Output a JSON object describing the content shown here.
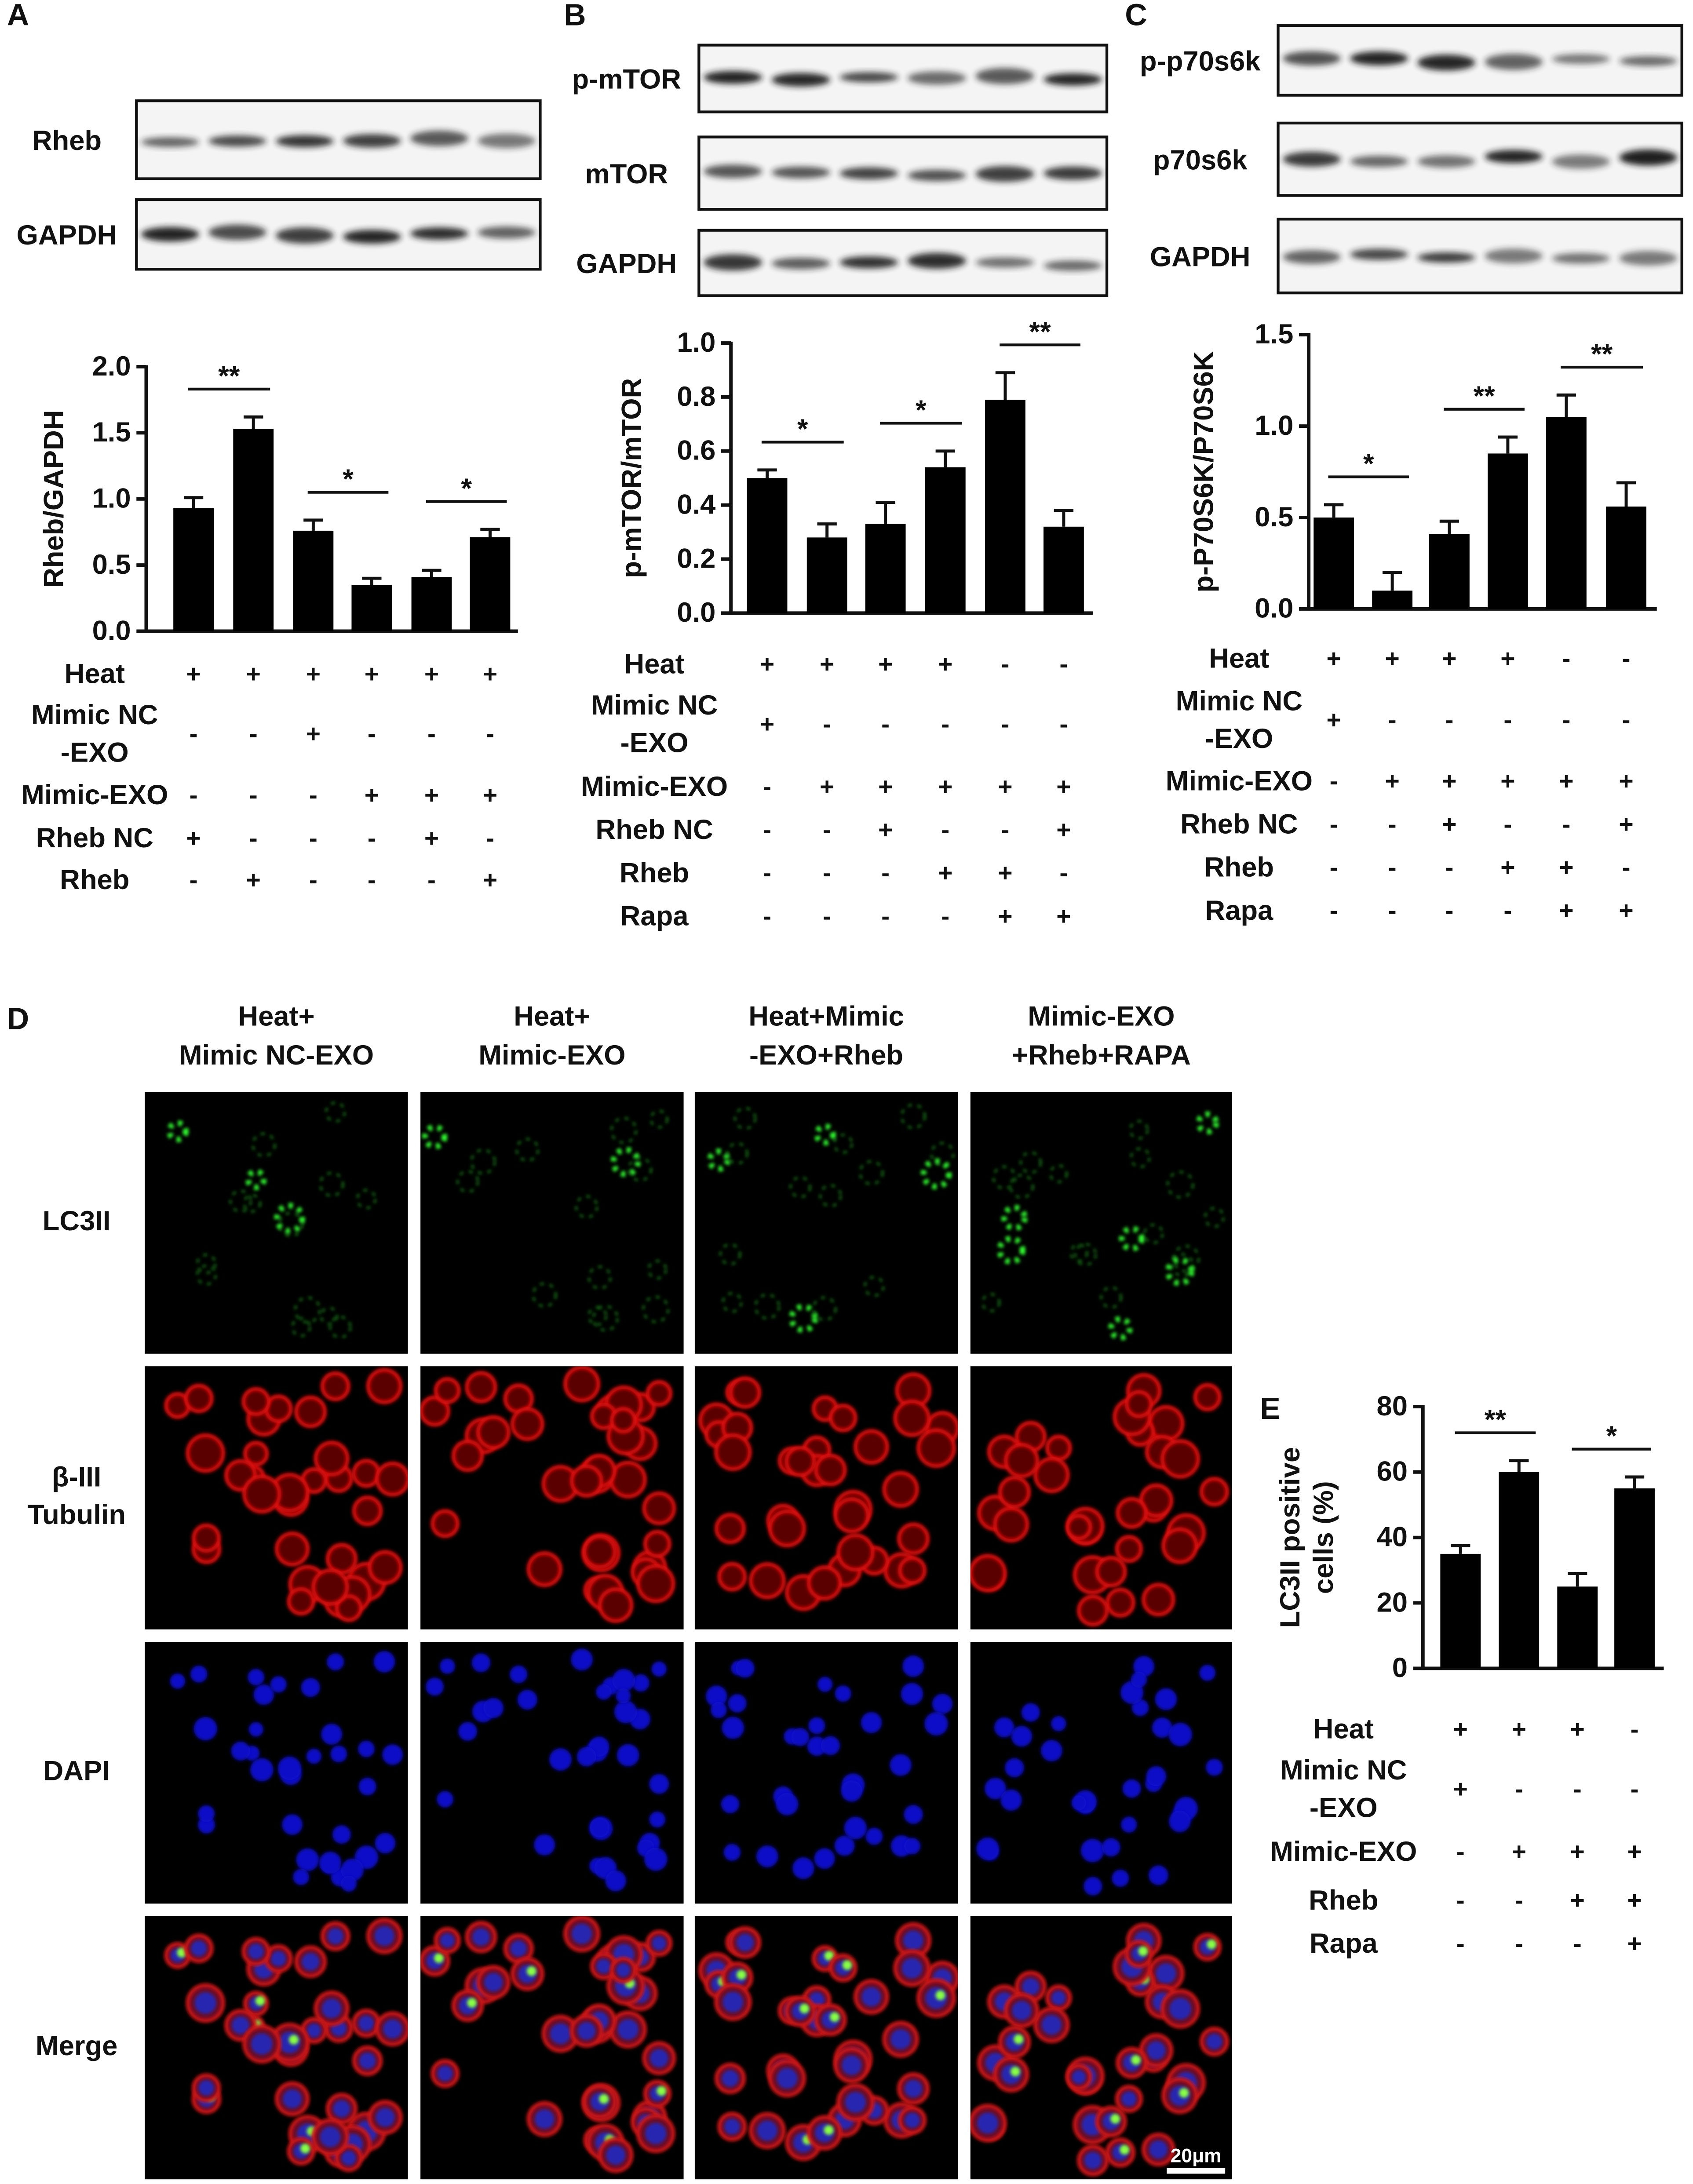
{
  "chart_data": [
    {
      "type": "bar",
      "panel": "A",
      "blots": [
        "Rheb",
        "GAPDH"
      ],
      "y_label": [
        "Rheb/GAPDH"
      ],
      "color": "#000000",
      "values": [
        0.93,
        1.53,
        0.76,
        0.35,
        0.41,
        0.71
      ],
      "errors": [
        0.08,
        0.09,
        0.08,
        0.05,
        0.05,
        0.06
      ],
      "ylim": [
        0,
        2
      ],
      "yticks": [
        {
          "value": 0,
          "label": "0.0"
        },
        {
          "value": 0.5,
          "label": "0.5"
        },
        {
          "value": 1,
          "label": "1.0"
        },
        {
          "value": 1.5,
          "label": "1.5"
        },
        {
          "value": 2,
          "label": "2.0"
        }
      ],
      "significance": [
        {
          "label": "**",
          "bars": [
            0,
            1
          ]
        },
        {
          "label": "*",
          "bars": [
            2,
            3
          ]
        },
        {
          "label": "*",
          "bars": [
            4,
            5
          ]
        }
      ],
      "conditions": [
        {
          "name": [
            "Heat"
          ],
          "signs": [
            "+",
            "+",
            "+",
            "+",
            "+",
            "+"
          ]
        },
        {
          "name": [
            "Mimic NC",
            "-EXO"
          ],
          "signs": [
            "-",
            "-",
            "+",
            "-",
            "-",
            "-"
          ]
        },
        {
          "name": [
            "Mimic-EXO"
          ],
          "signs": [
            "-",
            "-",
            "-",
            "+",
            "+",
            "+"
          ]
        },
        {
          "name": [
            "Rheb NC"
          ],
          "signs": [
            "+",
            "-",
            "-",
            "-",
            "+",
            "-"
          ]
        },
        {
          "name": [
            "Rheb"
          ],
          "signs": [
            "-",
            "+",
            "-",
            "-",
            "-",
            "+"
          ]
        }
      ]
    },
    {
      "type": "bar",
      "panel": "B",
      "blots": [
        "p-mTOR",
        "mTOR",
        "GAPDH"
      ],
      "y_label": [
        "p-mTOR/mTOR"
      ],
      "color": "#000000",
      "values": [
        0.5,
        0.28,
        0.33,
        0.54,
        0.79,
        0.32
      ],
      "errors": [
        0.03,
        0.05,
        0.08,
        0.06,
        0.1,
        0.06
      ],
      "ylim": [
        0,
        1
      ],
      "yticks": [
        {
          "value": 0,
          "label": "0.0"
        },
        0.2,
        0.4,
        0.6,
        0.8,
        {
          "value": 1,
          "label": "1.0"
        }
      ],
      "significance": [
        {
          "label": "*",
          "bars": [
            0,
            1
          ]
        },
        {
          "label": "*",
          "bars": [
            2,
            3
          ]
        },
        {
          "label": "**",
          "bars": [
            4,
            5
          ]
        }
      ],
      "conditions": [
        {
          "name": [
            "Heat"
          ],
          "signs": [
            "+",
            "+",
            "+",
            "+",
            "-",
            "-"
          ]
        },
        {
          "name": [
            "Mimic NC",
            "-EXO"
          ],
          "signs": [
            "+",
            "-",
            "-",
            "-",
            "-",
            "-"
          ]
        },
        {
          "name": [
            "Mimic-EXO"
          ],
          "signs": [
            "-",
            "+",
            "+",
            "+",
            "+",
            "+"
          ]
        },
        {
          "name": [
            "Rheb NC"
          ],
          "signs": [
            "-",
            "-",
            "+",
            "-",
            "-",
            "+"
          ]
        },
        {
          "name": [
            "Rheb"
          ],
          "signs": [
            "-",
            "-",
            "-",
            "+",
            "+",
            "-"
          ]
        },
        {
          "name": [
            "Rapa"
          ],
          "signs": [
            "-",
            "-",
            "-",
            "-",
            "+",
            "+"
          ]
        }
      ]
    },
    {
      "type": "bar",
      "panel": "C",
      "blots": [
        "p-p70s6k",
        "p70s6k",
        "GAPDH"
      ],
      "y_label": [
        "p-P70S6K/P70S6K"
      ],
      "color": "#000000",
      "values": [
        0.5,
        0.1,
        0.41,
        0.85,
        1.05,
        0.56
      ],
      "errors": [
        0.07,
        0.1,
        0.07,
        0.09,
        0.12,
        0.13
      ],
      "ylim": [
        0,
        1.5
      ],
      "yticks": [
        {
          "value": 0,
          "label": "0.0"
        },
        0.5,
        {
          "value": 1,
          "label": "1.0"
        },
        1.5
      ],
      "significance": [
        {
          "label": "*",
          "bars": [
            0,
            1
          ]
        },
        {
          "label": "**",
          "bars": [
            2,
            3
          ]
        },
        {
          "label": "**",
          "bars": [
            4,
            5
          ]
        }
      ],
      "conditions": [
        {
          "name": [
            "Heat"
          ],
          "signs": [
            "+",
            "+",
            "+",
            "+",
            "-",
            "-"
          ]
        },
        {
          "name": [
            "Mimic NC",
            "-EXO"
          ],
          "signs": [
            "+",
            "-",
            "-",
            "-",
            "-",
            "-"
          ]
        },
        {
          "name": [
            "Mimic-EXO"
          ],
          "signs": [
            "-",
            "+",
            "+",
            "+",
            "+",
            "+"
          ]
        },
        {
          "name": [
            "Rheb NC"
          ],
          "signs": [
            "-",
            "-",
            "+",
            "-",
            "-",
            "+"
          ]
        },
        {
          "name": [
            "Rheb"
          ],
          "signs": [
            "-",
            "-",
            "-",
            "+",
            "+",
            "-"
          ]
        },
        {
          "name": [
            "Rapa"
          ],
          "signs": [
            "-",
            "-",
            "-",
            "-",
            "+",
            "+"
          ]
        }
      ]
    },
    {
      "type": "bar",
      "panel": "E",
      "y_label": [
        "LC3II positive",
        "cells (%)"
      ],
      "color": "#000000",
      "values": [
        35,
        60,
        25,
        55
      ],
      "errors": [
        2.5,
        3.5,
        4,
        3.5
      ],
      "ylim": [
        0,
        80
      ],
      "yticks": [
        0,
        20,
        40,
        60,
        80
      ],
      "significance": [
        {
          "label": "**",
          "bars": [
            0,
            1
          ]
        },
        {
          "label": "*",
          "bars": [
            2,
            3
          ]
        }
      ],
      "conditions": [
        {
          "name": [
            "Heat"
          ],
          "signs": [
            "+",
            "+",
            "+",
            "-"
          ]
        },
        {
          "name": [
            "Mimic NC",
            "-EXO"
          ],
          "signs": [
            "+",
            "-",
            "-",
            "-"
          ]
        },
        {
          "name": [
            "Mimic-EXO"
          ],
          "signs": [
            "-",
            "+",
            "+",
            "+"
          ]
        },
        {
          "name": [
            "Rheb"
          ],
          "signs": [
            "-",
            "-",
            "+",
            "+"
          ]
        },
        {
          "name": [
            "Rapa"
          ],
          "signs": [
            "-",
            "-",
            "-",
            "+"
          ]
        }
      ]
    }
  ],
  "figure_d": {
    "panel": "D",
    "columns": [
      [
        "Heat+",
        "Mimic NC-EXO"
      ],
      [
        "Heat+",
        "Mimic-EXO"
      ],
      [
        "Heat+Mimic",
        "-EXO+Rheb"
      ],
      [
        "Mimic-EXO",
        "+Rheb+RAPA"
      ]
    ],
    "rows": [
      [
        "LC3II"
      ],
      [
        "β-III",
        "Tubulin"
      ],
      [
        "DAPI"
      ],
      [
        "Merge"
      ]
    ],
    "scale_bar": "20μm"
  }
}
